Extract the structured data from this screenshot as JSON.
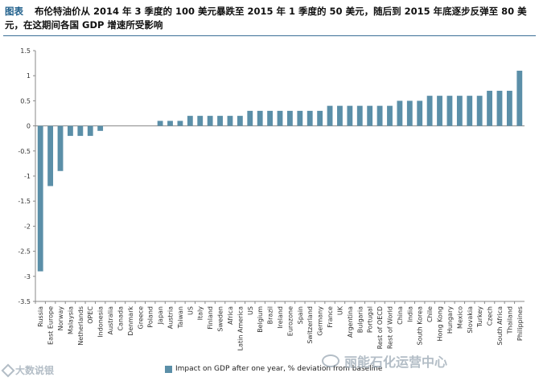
{
  "caption": {
    "label": "图表",
    "text": "布伦特油价从 2014 年 3 季度的 100 美元暴跌至 2015 年 1 季度的 50 美元，随后到 2015 年底逐步反弹至 80 美元，在这期间各国 GDP 增速所受影响"
  },
  "legend": {
    "label": "Impact on GDP after one year, % deviation from baseline"
  },
  "watermarks": {
    "right": "丽能石化运营中心",
    "left": "大数说银"
  },
  "colors": {
    "bar": "#5b8fa8",
    "axis": "#888888",
    "grid": "#d9d9d9",
    "rule": "#3b6e96"
  },
  "chart_data": {
    "type": "bar",
    "categories": [
      "Russia",
      "East Europe",
      "Norway",
      "Malaysia",
      "Netherlands",
      "OPEC",
      "Indonesia",
      "Australia",
      "Canada",
      "Denmark",
      "Greece",
      "Poland",
      "Japan",
      "Austria",
      "Taiwan",
      "US",
      "Italy",
      "Finland",
      "Sweden",
      "Africa",
      "Latin America",
      "US",
      "Belgium",
      "Brazil",
      "Ireland",
      "Eurozone",
      "Spain",
      "Switzerland",
      "Germany",
      "France",
      "UK",
      "Argentina",
      "Bulgaria",
      "Portugal",
      "Rest of OECD",
      "Rest of World",
      "China",
      "India",
      "South Korea",
      "Chile",
      "Hong Kong",
      "Hungary",
      "Mexico",
      "Slovakia",
      "Turkey",
      "Czech",
      "South Africa",
      "Thailand",
      "Philippines"
    ],
    "values": [
      -2.9,
      -1.2,
      -0.9,
      -0.2,
      -0.2,
      -0.2,
      -0.1,
      0,
      0,
      0,
      0,
      0,
      0.1,
      0.1,
      0.1,
      0.2,
      0.2,
      0.2,
      0.2,
      0.2,
      0.2,
      0.3,
      0.3,
      0.3,
      0.3,
      0.3,
      0.3,
      0.3,
      0.3,
      0.4,
      0.4,
      0.4,
      0.4,
      0.4,
      0.4,
      0.4,
      0.5,
      0.5,
      0.5,
      0.6,
      0.6,
      0.6,
      0.6,
      0.6,
      0.6,
      0.7,
      0.7,
      0.7,
      1.1
    ],
    "ylim": [
      -3.5,
      1.5
    ],
    "yticks": [
      "1.5",
      "1",
      "0.5",
      "0",
      "-0.5",
      "-1",
      "-1.5",
      "-2",
      "-2.5",
      "-3",
      "-3.5"
    ],
    "grid": false,
    "legend_position": "bottom"
  }
}
